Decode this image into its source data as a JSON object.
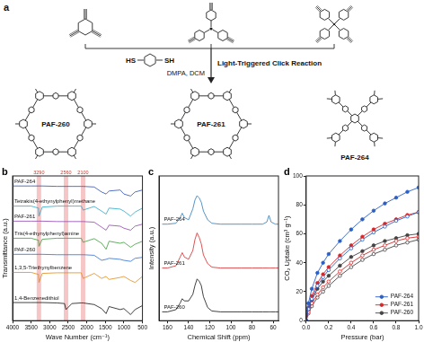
{
  "diagram": {
    "panel_label": "a",
    "reagent": [
      "HS",
      "SH"
    ],
    "reaction": "Light-Triggered Click Reaction",
    "conditions": "DMPA, DCM",
    "products": [
      "PAF-260",
      "PAF-261",
      "PAF-264"
    ]
  },
  "chart_data": [
    {
      "panel_label": "b",
      "type": "line",
      "x_label": "Wave Number (cm⁻¹)",
      "y_label": "Transmittance (a.u.)",
      "x": [
        4000,
        3500,
        3300,
        3290,
        3200,
        2800,
        2600,
        2560,
        2400,
        2150,
        2100,
        1800,
        1600,
        1480,
        1400,
        1100,
        1000,
        820,
        700,
        500
      ],
      "series": [
        {
          "name": "PAF-264",
          "color": "#2b4fb5",
          "values": [
            6.7,
            6.7,
            6.7,
            6.7,
            6.7,
            6.68,
            6.68,
            6.68,
            6.68,
            6.68,
            6.68,
            6.65,
            6.4,
            6.3,
            6.45,
            6.5,
            6.3,
            6.2,
            6.4,
            6.5
          ]
        },
        {
          "name": "Tetrakis(4-ethynylphenyl)methane",
          "color": "#27a9c9",
          "values": [
            5.7,
            5.7,
            5.6,
            5.2,
            5.65,
            5.7,
            5.7,
            5.7,
            5.7,
            5.7,
            5.5,
            5.68,
            5.45,
            5.3,
            5.6,
            5.55,
            5.45,
            5.2,
            5.4,
            5.6
          ]
        },
        {
          "name": "PAF-261",
          "color": "#8e44ad",
          "values": [
            4.95,
            4.95,
            4.95,
            4.95,
            4.95,
            4.93,
            4.93,
            4.93,
            4.93,
            4.93,
            4.93,
            4.9,
            4.65,
            4.5,
            4.75,
            4.7,
            4.6,
            4.5,
            4.7,
            4.8
          ]
        },
        {
          "name": "Tris(4-ethynylphenyl)amine",
          "color": "#3a9d3a",
          "values": [
            4.1,
            4.1,
            4.0,
            3.7,
            4.05,
            4.1,
            4.1,
            4.1,
            4.1,
            4.1,
            3.9,
            4.08,
            3.85,
            3.55,
            3.95,
            3.85,
            3.9,
            3.65,
            3.8,
            3.95
          ]
        },
        {
          "name": "PAF-260",
          "color": "#2e6fd1",
          "values": [
            3.3,
            3.3,
            3.3,
            3.3,
            3.3,
            3.28,
            3.28,
            3.28,
            3.28,
            3.28,
            3.28,
            3.25,
            3.0,
            3.05,
            3.1,
            3.05,
            3.0,
            2.95,
            3.1,
            3.15
          ]
        },
        {
          "name": "1,3,5-Triethynylbenzene",
          "color": "#e08a1e",
          "values": [
            2.4,
            2.4,
            2.3,
            1.9,
            2.35,
            2.38,
            2.38,
            2.38,
            2.38,
            2.38,
            2.1,
            2.35,
            2.1,
            2.2,
            2.05,
            2.15,
            2.2,
            2.0,
            1.9,
            2.2
          ]
        },
        {
          "name": "1,4-Benzenedithiol",
          "color": "#111111",
          "values": [
            0.9,
            0.9,
            0.9,
            0.9,
            0.9,
            0.88,
            0.85,
            0.55,
            0.85,
            0.88,
            0.88,
            0.8,
            0.6,
            0.35,
            0.7,
            0.55,
            0.6,
            0.3,
            0.55,
            0.75
          ]
        }
      ],
      "xlim": [
        4000,
        500
      ],
      "xticks": [
        4000,
        3500,
        3000,
        2500,
        2000,
        1500,
        1000,
        500
      ],
      "ylim": [
        0,
        7.2
      ],
      "tick_labels": "x",
      "grid": false,
      "annotations": [
        {
          "x": 3290,
          "label": "3290"
        },
        {
          "x": 2560,
          "label": "2560"
        },
        {
          "x": 2100,
          "label": "2100"
        }
      ]
    },
    {
      "panel_label": "c",
      "type": "line",
      "x_label": "Chemical Shift (ppm)",
      "y_label": "Intensity (a.u.)",
      "x": [
        165,
        160,
        152,
        148,
        146,
        144,
        140,
        136,
        134,
        132,
        130,
        128,
        126,
        122,
        118,
        110,
        100,
        90,
        80,
        70,
        66,
        64,
        62,
        58,
        55
      ],
      "series": [
        {
          "name": "PAF-264",
          "color": "#2a7ab9",
          "values": [
            2.2,
            2.2,
            2.22,
            2.35,
            2.45,
            2.35,
            2.3,
            2.55,
            2.75,
            2.85,
            2.8,
            2.7,
            2.5,
            2.3,
            2.22,
            2.2,
            2.2,
            2.2,
            2.2,
            2.2,
            2.25,
            2.4,
            2.25,
            2.2,
            2.2
          ]
        },
        {
          "name": "PAF-261",
          "color": "#d62728",
          "values": [
            1.2,
            1.2,
            1.25,
            1.45,
            1.55,
            1.45,
            1.4,
            1.6,
            1.85,
            2.0,
            1.9,
            1.75,
            1.5,
            1.3,
            1.22,
            1.2,
            1.2,
            1.2,
            1.2,
            1.2,
            1.2,
            1.2,
            1.2,
            1.2,
            1.2
          ]
        },
        {
          "name": "PAF-260",
          "color": "#111111",
          "values": [
            0.2,
            0.2,
            0.25,
            0.4,
            0.5,
            0.45,
            0.45,
            0.6,
            0.8,
            0.95,
            0.9,
            0.8,
            0.55,
            0.3,
            0.22,
            0.2,
            0.2,
            0.2,
            0.2,
            0.2,
            0.2,
            0.2,
            0.2,
            0.2,
            0.2
          ]
        }
      ],
      "xlim": [
        168,
        55
      ],
      "xticks": [
        160,
        140,
        120,
        100,
        80,
        60
      ],
      "ylim": [
        0,
        3.3
      ],
      "tick_labels": "x",
      "grid": false
    },
    {
      "panel_label": "d",
      "type": "line",
      "x_label": "Pressure (bar)",
      "y_label": "CO₂ Uptake (cm³ g⁻¹)",
      "x": [
        0,
        0.02,
        0.05,
        0.1,
        0.15,
        0.2,
        0.3,
        0.4,
        0.5,
        0.6,
        0.7,
        0.8,
        0.9,
        1.0
      ],
      "series": [
        {
          "name": "PAF-264",
          "color": "#2b5fc4",
          "marker": "circle",
          "values": [
            0,
            12,
            22,
            33,
            40,
            46,
            55,
            63,
            70,
            76,
            81,
            85,
            89,
            92
          ]
        },
        {
          "name": "PAF-264",
          "color": "#2b5fc4",
          "marker": "open circle",
          "values": [
            0,
            8,
            15,
            24,
            30,
            35,
            43,
            50,
            56,
            61,
            65,
            69,
            72,
            75
          ]
        },
        {
          "name": "PAF-261",
          "color": "#d62728",
          "marker": "circle",
          "values": [
            0,
            9,
            17,
            26,
            32,
            37,
            45,
            52,
            58,
            63,
            67,
            70,
            73,
            75
          ]
        },
        {
          "name": "PAF-261",
          "color": "#d62728",
          "marker": "open circle",
          "values": [
            0,
            6,
            12,
            18,
            23,
            27,
            34,
            40,
            45,
            49,
            52,
            55,
            57,
            58
          ]
        },
        {
          "name": "PAF-260",
          "color": "#444444",
          "marker": "circle",
          "values": [
            0,
            7,
            14,
            22,
            27,
            31,
            38,
            44,
            48,
            52,
            55,
            57,
            59,
            60
          ]
        },
        {
          "name": "PAF-260",
          "color": "#444444",
          "marker": "open circle",
          "values": [
            0,
            5,
            10,
            16,
            20,
            24,
            31,
            37,
            42,
            46,
            49,
            52,
            54,
            56
          ]
        }
      ],
      "xlim": [
        0,
        1.0
      ],
      "xticks": [
        {
          "value": 0,
          "label": "0.0"
        },
        {
          "value": 0.2,
          "label": "0.2"
        },
        {
          "value": 0.4,
          "label": "0.4"
        },
        {
          "value": 0.6,
          "label": "0.6"
        },
        {
          "value": 0.8,
          "label": "0.8"
        },
        {
          "value": 1.0,
          "label": "1.0"
        }
      ],
      "ylim": [
        0,
        100
      ],
      "yticks": [
        0,
        20,
        40,
        60,
        80,
        100
      ],
      "grid": false,
      "legend": "lower right"
    }
  ]
}
